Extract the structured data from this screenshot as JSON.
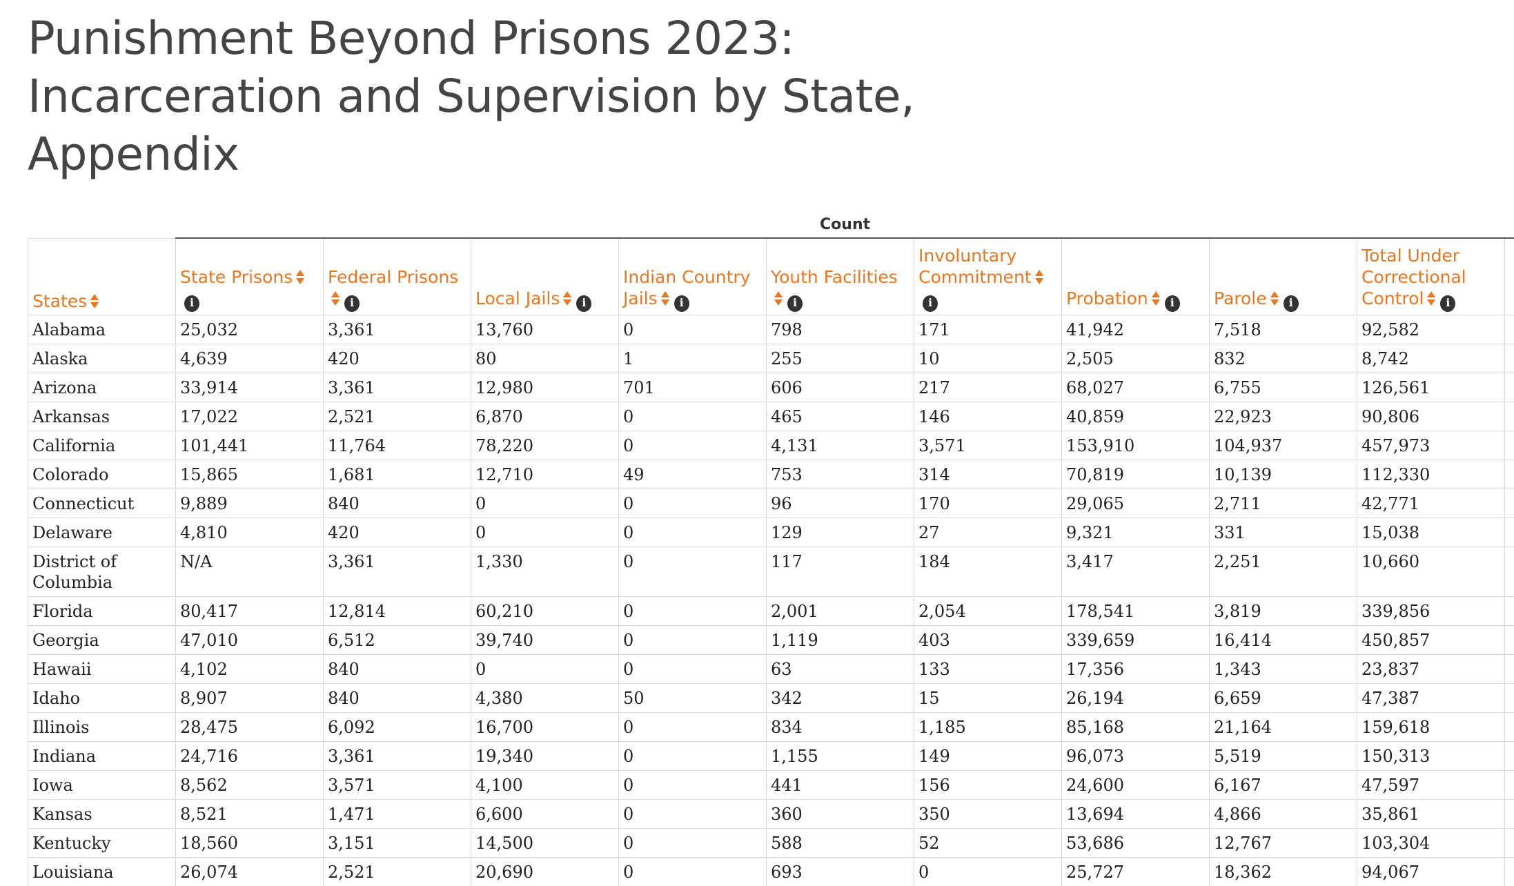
{
  "title_lines": [
    "Punishment Beyond Prisons 2023:",
    "Incarceration and Supervision by State,",
    "Appendix"
  ],
  "group_header": "Count",
  "columns": [
    {
      "label": "States",
      "info": false
    },
    {
      "label": "State Prisons",
      "info": true
    },
    {
      "label": "Federal Prisons",
      "info": true
    },
    {
      "label": "Local Jails",
      "info": true
    },
    {
      "label": "Indian Country Jails",
      "info": true
    },
    {
      "label": "Youth Facilities",
      "info": true
    },
    {
      "label": "Involuntary Commitment",
      "info": true
    },
    {
      "label": "Probation",
      "info": true
    },
    {
      "label": "Parole",
      "info": true
    },
    {
      "label": "Total Under Correctional Control",
      "info": true
    }
  ],
  "icons": {
    "sort": "sort-icon",
    "info": "info-icon"
  },
  "colors": {
    "header_accent": "#e87722",
    "title": "#444444"
  },
  "rows": [
    [
      "Alabama",
      "25,032",
      "3,361",
      "13,760",
      "0",
      "798",
      "171",
      "41,942",
      "7,518",
      "92,582"
    ],
    [
      "Alaska",
      "4,639",
      "420",
      "80",
      "1",
      "255",
      "10",
      "2,505",
      "832",
      "8,742"
    ],
    [
      "Arizona",
      "33,914",
      "3,361",
      "12,980",
      "701",
      "606",
      "217",
      "68,027",
      "6,755",
      "126,561"
    ],
    [
      "Arkansas",
      "17,022",
      "2,521",
      "6,870",
      "0",
      "465",
      "146",
      "40,859",
      "22,923",
      "90,806"
    ],
    [
      "California",
      "101,441",
      "11,764",
      "78,220",
      "0",
      "4,131",
      "3,571",
      "153,910",
      "104,937",
      "457,973"
    ],
    [
      "Colorado",
      "15,865",
      "1,681",
      "12,710",
      "49",
      "753",
      "314",
      "70,819",
      "10,139",
      "112,330"
    ],
    [
      "Connecticut",
      "9,889",
      "840",
      "0",
      "0",
      "96",
      "170",
      "29,065",
      "2,711",
      "42,771"
    ],
    [
      "Delaware",
      "4,810",
      "420",
      "0",
      "0",
      "129",
      "27",
      "9,321",
      "331",
      "15,038"
    ],
    [
      "District of Columbia",
      "N/A",
      "3,361",
      "1,330",
      "0",
      "117",
      "184",
      "3,417",
      "2,251",
      "10,660"
    ],
    [
      "Florida",
      "80,417",
      "12,814",
      "60,210",
      "0",
      "2,001",
      "2,054",
      "178,541",
      "3,819",
      "339,856"
    ],
    [
      "Georgia",
      "47,010",
      "6,512",
      "39,740",
      "0",
      "1,119",
      "403",
      "339,659",
      "16,414",
      "450,857"
    ],
    [
      "Hawaii",
      "4,102",
      "840",
      "0",
      "0",
      "63",
      "133",
      "17,356",
      "1,343",
      "23,837"
    ],
    [
      "Idaho",
      "8,907",
      "840",
      "4,380",
      "50",
      "342",
      "15",
      "26,194",
      "6,659",
      "47,387"
    ],
    [
      "Illinois",
      "28,475",
      "6,092",
      "16,700",
      "0",
      "834",
      "1,185",
      "85,168",
      "21,164",
      "159,618"
    ],
    [
      "Indiana",
      "24,716",
      "3,361",
      "19,340",
      "0",
      "1,155",
      "149",
      "96,073",
      "5,519",
      "150,313"
    ],
    [
      "Iowa",
      "8,562",
      "3,571",
      "4,100",
      "0",
      "441",
      "156",
      "24,600",
      "6,167",
      "47,597"
    ],
    [
      "Kansas",
      "8,521",
      "1,471",
      "6,600",
      "0",
      "360",
      "350",
      "13,694",
      "4,866",
      "35,861"
    ],
    [
      "Kentucky",
      "18,560",
      "3,151",
      "14,500",
      "0",
      "588",
      "52",
      "53,686",
      "12,767",
      "103,304"
    ],
    [
      "Louisiana",
      "26,074",
      "2,521",
      "20,690",
      "0",
      "693",
      "0",
      "25,727",
      "18,362",
      "94,067"
    ]
  ]
}
